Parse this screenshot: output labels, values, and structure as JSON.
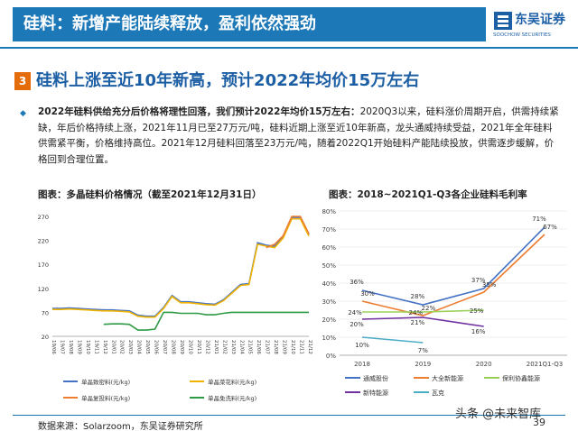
{
  "header": {
    "title": "硅料：新增产能陆续释放，盈利依然强劲",
    "logo_cn": "东吴证券",
    "logo_en": "SOOCHOW SECURITIES",
    "accent": "#1d78b8"
  },
  "section": {
    "number": "3",
    "title": "硅料上涨至近10年新高，预计2022年均价15万左右"
  },
  "body": {
    "lead": "2022年硅料供给充分后价格将理性回落，我们预计2022年均价15万左右：",
    "text": "2020Q3以来，硅料涨价周期开启，供需持续紧缺，年后价格持续上涨，2021年11月已至27万元/吨，硅料近期上涨至近10年新高，龙头通威持续受益，2021年全年硅料供需紧平衡，价格维持高位。2021年12月硅料回落至23万元/吨，随着2022Q1开始硅料产能陆续投放，供需逐步缓解，价格回到合理位置。"
  },
  "charts": {
    "left_title": "图表：多晶硅料价格情况（截至2021年12月31日）",
    "right_title": "图表：2018~2021Q1-Q3各企业硅料毛利率"
  },
  "chart_data": [
    {
      "type": "line",
      "yticks": [
        "270",
        "220",
        "170",
        "120",
        "70",
        "20"
      ],
      "ylim": [
        20,
        270
      ],
      "xticks": [
        "19/06",
        "19/07",
        "19/08",
        "19/09",
        "19/10",
        "19/11",
        "19/12",
        "20/01",
        "20/02",
        "20/03",
        "20/04",
        "20/05",
        "20/06",
        "20/07",
        "20/08",
        "20/09",
        "20/10",
        "20/11",
        "20/12",
        "21/01",
        "21/02",
        "21/03",
        "21/04",
        "21/05",
        "21/06",
        "21/07",
        "21/08",
        "21/09",
        "21/10",
        "21/11",
        "21/12"
      ],
      "series": [
        {
          "name": "单晶致密料(元/kg)",
          "color": "#4472c4",
          "values": [
            78,
            78,
            79,
            78,
            77,
            76,
            75,
            75,
            74,
            73,
            64,
            62,
            62,
            80,
            105,
            92,
            92,
            90,
            88,
            87,
            96,
            112,
            128,
            130,
            215,
            210,
            208,
            228,
            268,
            268,
            232
          ]
        },
        {
          "name": "单晶菜花料(元/kg)",
          "color": "#f0b400",
          "values": [
            76,
            76,
            77,
            76,
            75,
            74,
            73,
            73,
            72,
            71,
            62,
            60,
            60,
            78,
            103,
            90,
            90,
            88,
            86,
            85,
            94,
            110,
            126,
            128,
            212,
            208,
            205,
            225,
            265,
            265,
            229
          ]
        },
        {
          "name": "单晶复投料(元/kg)",
          "color": "#ed7d31",
          "values": [
            null,
            null,
            null,
            null,
            null,
            null,
            null,
            null,
            null,
            null,
            null,
            null,
            null,
            null,
            null,
            null,
            null,
            null,
            null,
            null,
            null,
            null,
            null,
            null,
            null,
            205,
            212,
            230,
            270,
            270,
            234
          ]
        },
        {
          "name": "单晶免洗料(元/kg)",
          "color": "#2e9b47",
          "values": [
            null,
            null,
            null,
            null,
            null,
            null,
            45,
            46,
            46,
            45,
            33,
            33,
            35,
            70,
            70,
            68,
            68,
            68,
            65,
            65,
            68,
            70,
            70,
            70,
            70,
            70,
            70,
            70,
            70,
            70,
            70
          ]
        }
      ]
    },
    {
      "type": "line",
      "categories": [
        "2018",
        "2019",
        "2020",
        "2021Q1-Q3"
      ],
      "yticks": [
        "80%",
        "70%",
        "60%",
        "50%",
        "40%",
        "30%",
        "20%",
        "10%",
        "0%"
      ],
      "ylim": [
        0,
        80
      ],
      "series": [
        {
          "name": "通威股份",
          "color": "#4472c4",
          "values": [
            36,
            28,
            37,
            71
          ],
          "labels": [
            "36%",
            "28%",
            "37%",
            "71%"
          ]
        },
        {
          "name": "大全新能源",
          "color": "#ed7d31",
          "values": [
            30,
            22,
            35,
            67
          ],
          "labels": [
            "30%",
            "22%",
            "35%",
            "67%"
          ]
        },
        {
          "name": "保利协鑫能源",
          "color": "#9ad05a",
          "values": [
            24,
            24,
            25,
            null
          ],
          "labels": [
            "24%",
            "24%",
            "25%",
            ""
          ]
        },
        {
          "name": "新特能源",
          "color": "#7030a0",
          "values": [
            20,
            21,
            16,
            null
          ],
          "labels": [
            "20%",
            "21%",
            "16%",
            ""
          ]
        },
        {
          "name": "瓦克",
          "color": "#4bacc6",
          "values": [
            10,
            7,
            null,
            null
          ],
          "labels": [
            "10%",
            "7%",
            "",
            ""
          ]
        }
      ]
    }
  ],
  "footer": {
    "source": "数据来源：Solarzoom，东吴证券研究所",
    "page": "39",
    "watermark": "头条 @未来智库"
  }
}
